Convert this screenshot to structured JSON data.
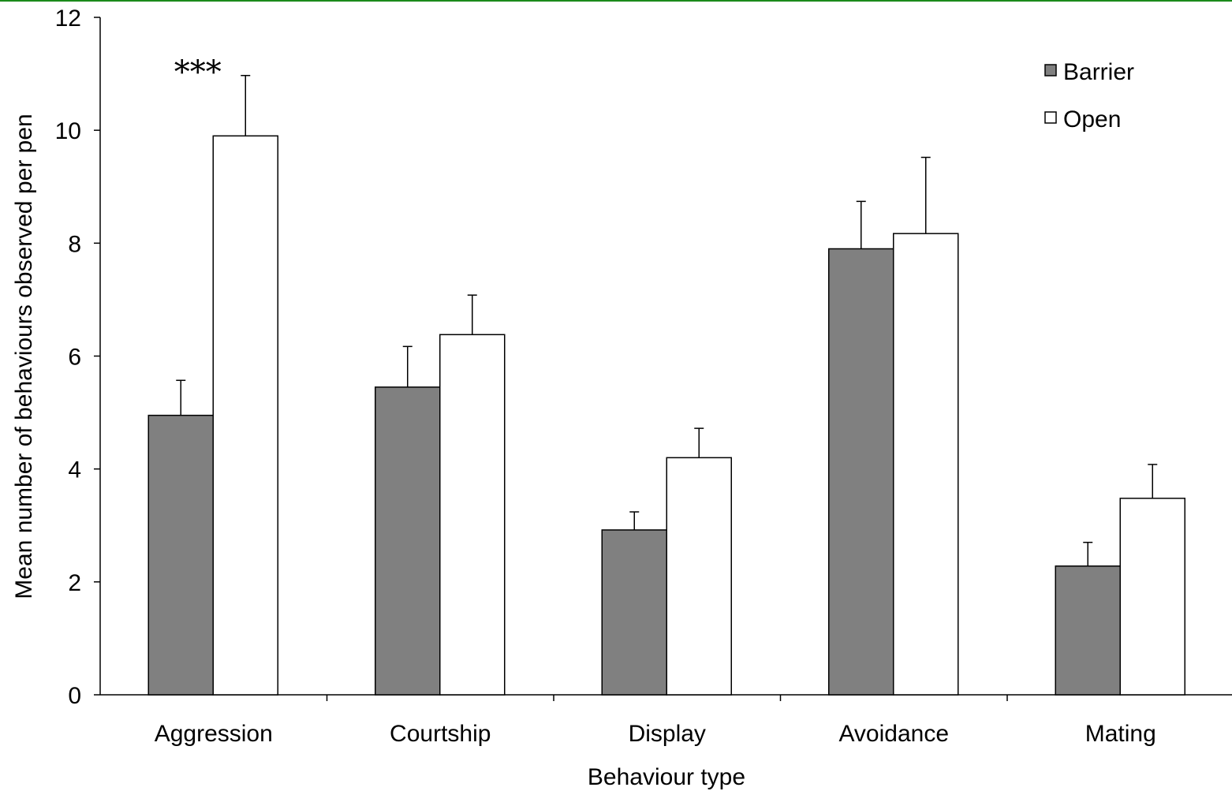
{
  "chart_data": {
    "type": "bar",
    "title": "",
    "xlabel": "Behaviour type",
    "ylabel": "Mean number of behaviours observed per pen",
    "ylim": [
      0,
      12
    ],
    "yticks": [
      0,
      2,
      4,
      6,
      8,
      10,
      12
    ],
    "grid": false,
    "legend_position": "top-right",
    "categories": [
      "Aggression",
      "Courtship",
      "Display",
      "Avoidance",
      "Mating"
    ],
    "series": [
      {
        "name": "Barrier",
        "color": "#808080",
        "values": [
          4.95,
          5.45,
          2.92,
          7.9,
          2.28
        ],
        "errors": [
          0.62,
          0.72,
          0.32,
          0.84,
          0.42
        ]
      },
      {
        "name": "Open",
        "color": "#ffffff",
        "values": [
          9.9,
          6.38,
          4.2,
          8.17,
          3.48
        ],
        "errors": [
          1.07,
          0.7,
          0.52,
          1.35,
          0.6
        ]
      }
    ],
    "annotations": [
      {
        "text": "***",
        "category": "Aggression"
      }
    ]
  },
  "colors": {
    "frame_line": "#1a8a1a",
    "axis": "#000000"
  }
}
